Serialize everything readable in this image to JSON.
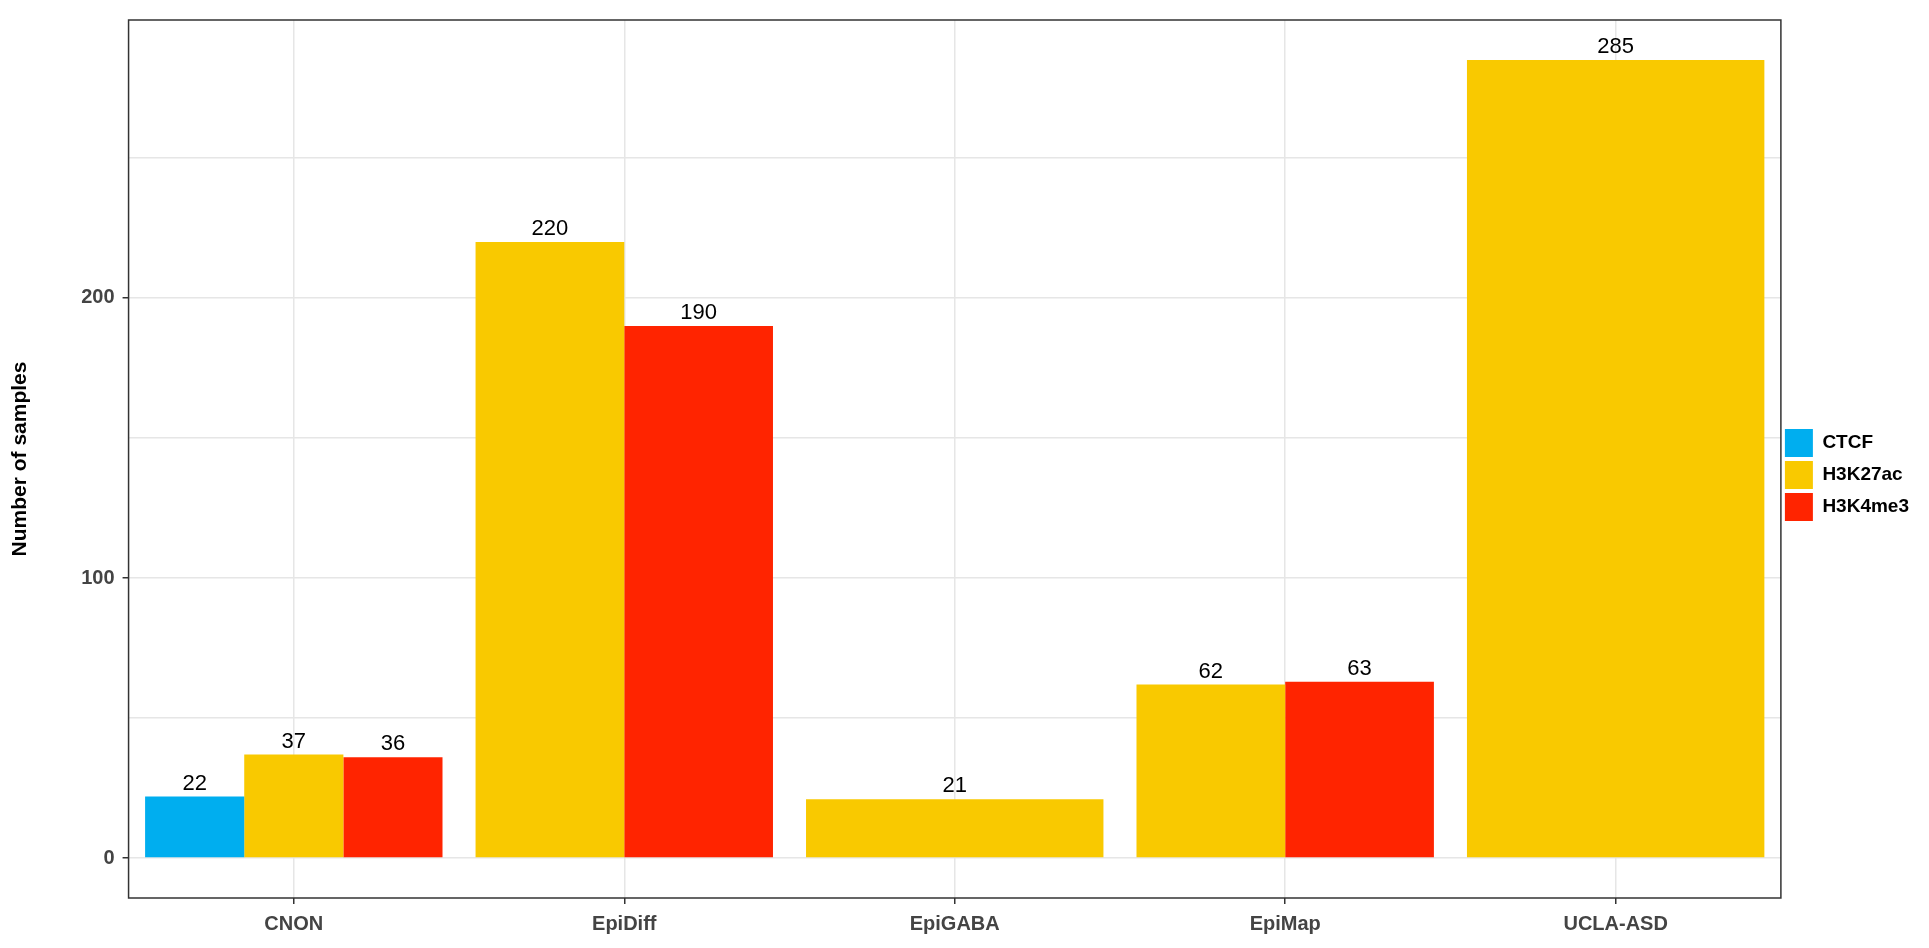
{
  "chart_data": {
    "type": "bar",
    "ylabel": "Number of samples",
    "categories": [
      "CNON",
      "EpiDiff",
      "EpiGABA",
      "EpiMap",
      "UCLA-ASD"
    ],
    "series": [
      {
        "name": "CTCF",
        "color": "#00aeef",
        "values": [
          22,
          null,
          null,
          null,
          null
        ]
      },
      {
        "name": "H3K27ac",
        "color": "#f9c900",
        "values": [
          37,
          220,
          21,
          62,
          285
        ]
      },
      {
        "name": "H3K4me3",
        "color": "#ff2400",
        "values": [
          36,
          190,
          null,
          63,
          null
        ]
      }
    ],
    "ylim": [
      -14.25,
      299.25
    ],
    "yticks": [
      0,
      {
        "value": 50,
        "label": null
      },
      100,
      {
        "value": 150,
        "label": null
      },
      200,
      {
        "value": 250,
        "label": null
      }
    ],
    "grid": true,
    "legend": "right",
    "data_labels": true
  }
}
